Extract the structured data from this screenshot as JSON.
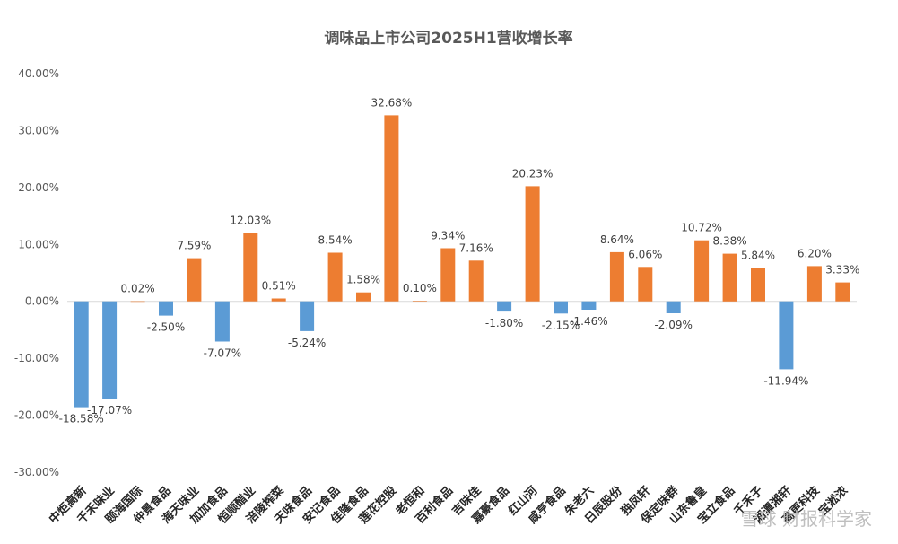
{
  "chart_data": {
    "type": "bar",
    "title": "调味品上市公司2025H1营收增长率",
    "xlabel": "",
    "ylabel": "",
    "ylim": [
      -30,
      40
    ],
    "yticks": [
      40,
      30,
      20,
      10,
      0,
      -10,
      -20,
      -30
    ],
    "ytick_labels": [
      "40.00%",
      "30.00%",
      "20.00%",
      "10.00%",
      "0.00%",
      "-10.00%",
      "-20.00%",
      "-30.00%"
    ],
    "categories": [
      "中炬高新",
      "千禾味业",
      "颐海国际",
      "仲景食品",
      "海天味业",
      "加加食品",
      "恒顺醋业",
      "涪陵榨菜",
      "天味食品",
      "安记食品",
      "佳隆食品",
      "莲花控股",
      "老恒和",
      "百利食品",
      "吉味佳",
      "嘉豪食品",
      "红山河",
      "咸亨食品",
      "朱老六",
      "日辰股份",
      "独凤轩",
      "保定味群",
      "山东鲁皇",
      "宝立食品",
      "千禾子",
      "湘潭湘轩",
      "高更科技",
      "宝淞浓"
    ],
    "values": [
      -18.58,
      -17.07,
      0.02,
      -2.5,
      7.59,
      -7.07,
      12.03,
      0.51,
      -5.24,
      8.54,
      1.58,
      32.68,
      0.1,
      9.34,
      7.16,
      -1.8,
      20.23,
      -2.15,
      -1.46,
      8.64,
      6.06,
      -2.09,
      10.72,
      8.38,
      5.84,
      -11.94,
      6.2,
      3.33
    ],
    "data_labels": [
      "-18.58%",
      "-17.07%",
      "0.02%",
      "-2.50%",
      "7.59%",
      "-7.07%",
      "12.03%",
      "0.51%",
      "-5.24%",
      "8.54%",
      "1.58%",
      "32.68%",
      "0.10%",
      "9.34%",
      "7.16%",
      "-1.80%",
      "20.23%",
      "-2.15%",
      "-1.46%",
      "8.64%",
      "6.06%",
      "-2.09%",
      "10.72%",
      "8.38%",
      "5.84%",
      "-11.94%",
      "6.20%",
      "3.33%"
    ],
    "colors": {
      "positive": "#ED7D31",
      "negative": "#5B9BD5"
    },
    "grid": false,
    "legend": "none"
  },
  "watermark": "雪球 财报科学家"
}
